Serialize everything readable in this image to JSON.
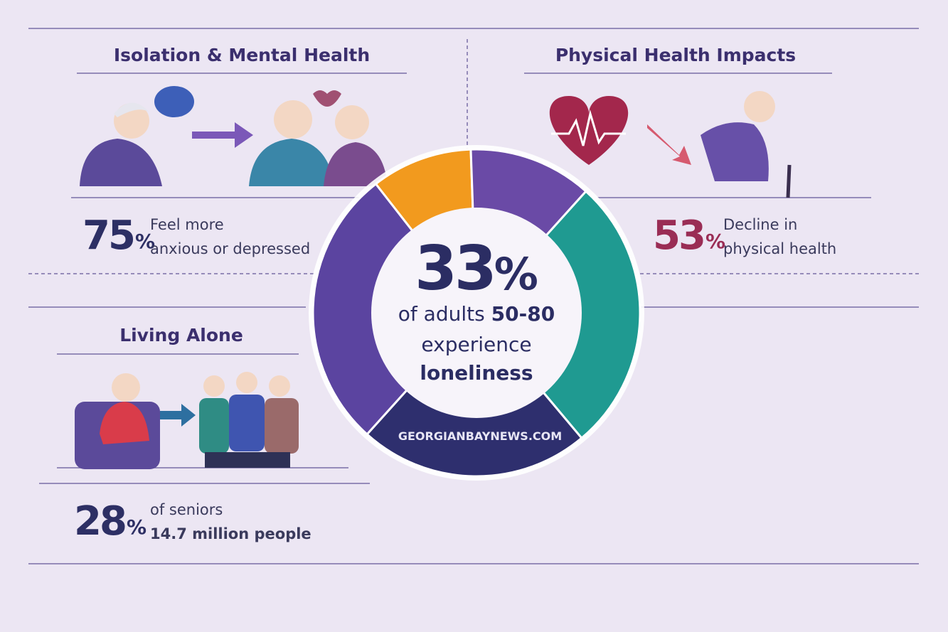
{
  "sections": [
    {
      "title": "Isolation & Mental Health",
      "stat": {
        "number": "75",
        "unit": "%"
      },
      "lines": [
        "Feel more",
        "anxious or depressed"
      ]
    },
    {
      "title": "Physical Health Impacts",
      "stat": {
        "number": "53",
        "unit": "%"
      },
      "lines": [
        "Decline in",
        "physical health"
      ]
    },
    {
      "title": "Living Alone",
      "stat": {
        "number": "28",
        "unit": "%"
      },
      "lines": [
        "of seniors",
        "14.7 million people"
      ]
    }
  ],
  "center": {
    "stat": {
      "number": "33",
      "unit": "%"
    },
    "lead": "of adults",
    "range": "50-80",
    "lines": [
      "experience",
      "loneliness"
    ]
  },
  "source": "GEORGIANBAYNEWS.COM"
}
